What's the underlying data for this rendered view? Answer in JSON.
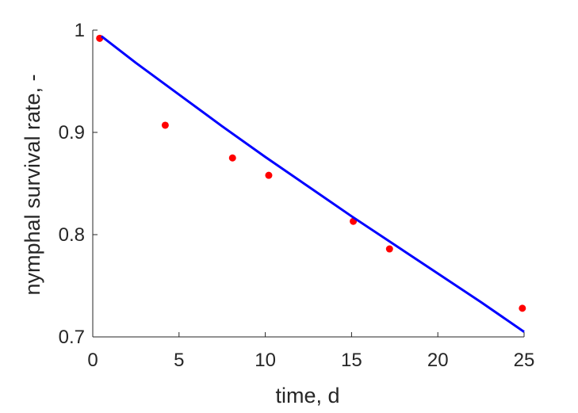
{
  "chart_data": {
    "type": "scatter",
    "title": "",
    "xlabel": "time, d",
    "ylabel": "nymphal survival rate, -",
    "xlim": [
      0,
      25
    ],
    "ylim": [
      0.7,
      1.0
    ],
    "xticks": [
      0,
      5,
      10,
      15,
      20,
      25
    ],
    "xtick_labels": [
      "0",
      "5",
      "10",
      "15",
      "20",
      "25"
    ],
    "yticks": [
      0.7,
      0.8,
      0.9,
      1.0
    ],
    "ytick_labels": [
      "0.7",
      "0.8",
      "0.9",
      "1"
    ],
    "grid": false,
    "series": [
      {
        "kind": "points",
        "color": "#ff0000",
        "x": [
          0.4,
          4.2,
          8.1,
          10.2,
          15.1,
          17.2,
          24.9
        ],
        "y": [
          0.992,
          0.907,
          0.875,
          0.858,
          0.813,
          0.786,
          0.728
        ]
      },
      {
        "kind": "line",
        "color": "#0000ff",
        "x": [
          0.5,
          2.5,
          5,
          7.5,
          10,
          12.5,
          15,
          17.5,
          20,
          22.5,
          25
        ],
        "y": [
          0.994,
          0.968,
          0.937,
          0.906,
          0.876,
          0.847,
          0.818,
          0.79,
          0.762,
          0.734,
          0.705
        ]
      }
    ]
  }
}
